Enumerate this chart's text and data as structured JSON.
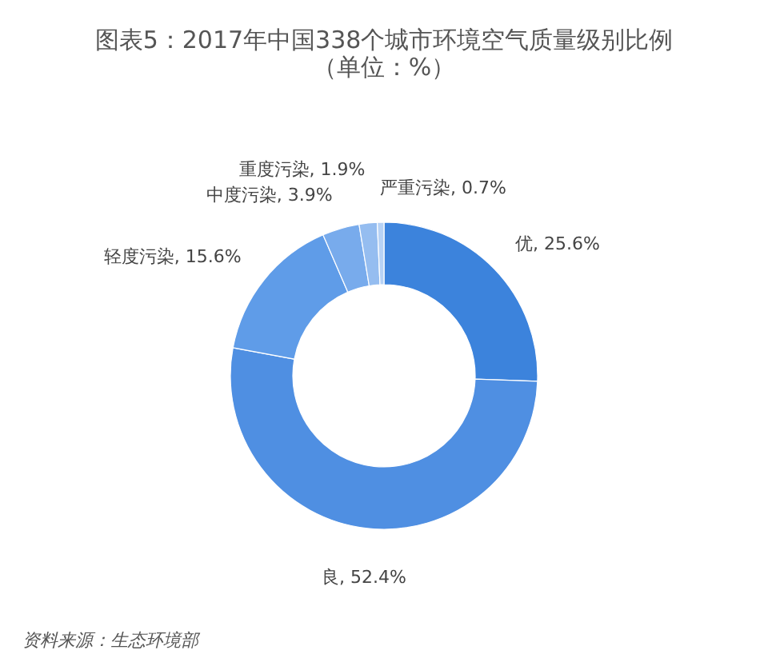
{
  "chart_data": {
    "type": "donut",
    "title": "图表5：2017年中国338个城市环境空气质量级别比例（单位：%）",
    "categories": [
      "优",
      "良",
      "轻度污染",
      "中度污染",
      "重度污染",
      "严重污染"
    ],
    "values": [
      25.6,
      52.4,
      15.6,
      3.9,
      1.9,
      0.7
    ],
    "colors": [
      "#3c83dc",
      "#4f8fe2",
      "#5f9ce8",
      "#78abec",
      "#95bdf0",
      "#b7d2f5"
    ],
    "value_labels": [
      ", 25.6%",
      ", 52.4%",
      ", 15.6%",
      ", 3.9%",
      ", 1.9%",
      ", 0.7%"
    ],
    "annotations": [
      "资料来源：生态环境部"
    ]
  }
}
